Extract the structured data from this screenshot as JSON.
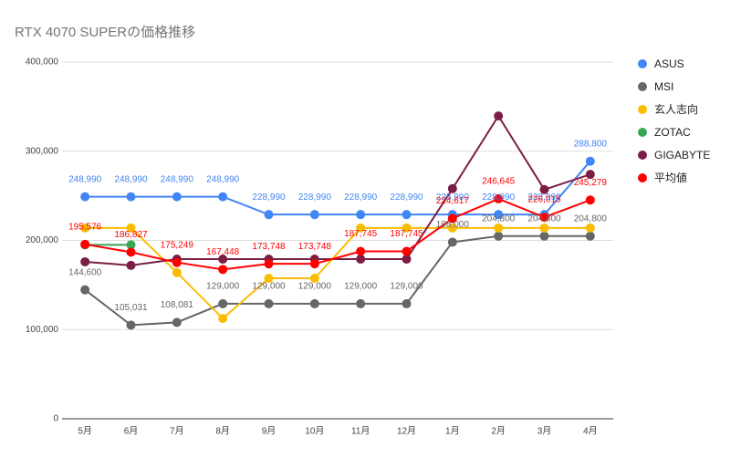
{
  "chart_data": {
    "type": "line",
    "title": "RTX 4070 SUPERの価格推移",
    "categories": [
      "5月",
      "6月",
      "7月",
      "8月",
      "9月",
      "10月",
      "11月",
      "12月",
      "1月",
      "2月",
      "3月",
      "4月"
    ],
    "ylim": [
      0,
      400000
    ],
    "yticks": [
      0,
      {
        "value": 100000,
        "label": "100,000"
      },
      {
        "value": 200000,
        "label": "200,000"
      },
      {
        "value": 300000,
        "label": "300,000"
      },
      {
        "value": 400000,
        "label": "400,000"
      }
    ],
    "grid": true,
    "legend": "right",
    "series": [
      {
        "name": "ASUS",
        "color": "#4285f4",
        "values": [
          248990,
          248990,
          248990,
          248990,
          228990,
          228990,
          228990,
          228990,
          228990,
          228990,
          228990,
          288800
        ],
        "value_labels": [
          "248,990",
          "248,990",
          "248,990",
          "248,990",
          "228,990",
          "228,990",
          "228,990",
          "228,990",
          "228,990",
          "228,990",
          "228,990",
          "288,800"
        ]
      },
      {
        "name": "MSI",
        "color": "#666666",
        "values": [
          144600,
          105031,
          108081,
          129000,
          129000,
          129000,
          129000,
          129000,
          198000,
          204800,
          204800,
          204800
        ],
        "value_labels": [
          "144,600",
          "105,031",
          "108,081",
          "129,000",
          "129,000",
          "129,000",
          "129,000",
          "129,000",
          "198,000",
          "204,800",
          "204,800",
          "204,800"
        ]
      },
      {
        "name": "玄人志向",
        "color": "#fbbc04",
        "values": [
          214000,
          214000,
          164000,
          112500,
          157500,
          157500,
          214000,
          214000,
          214000,
          214000,
          214000,
          214000
        ]
      },
      {
        "name": "ZOTAC",
        "color": "#34a853",
        "values": [
          195000,
          195000,
          null,
          null,
          null,
          null,
          null,
          null,
          null,
          null,
          null,
          null
        ]
      },
      {
        "name": "GIGABYTE",
        "color": "#7b1e45",
        "values": [
          176000,
          172000,
          179000,
          179000,
          179000,
          179000,
          179000,
          179000,
          258000,
          339500,
          257000,
          274000
        ]
      },
      {
        "name": "平均値",
        "color": "#ff0000",
        "values": [
          195576,
          186827,
          175249,
          167448,
          173748,
          173748,
          187745,
          187745,
          224617,
          246645,
          226015,
          245279
        ],
        "value_labels": [
          "195,576",
          "186,827",
          "175,249",
          "167,448",
          "173,748",
          "173,748",
          "187,745",
          "187,745",
          "224,617",
          "246,645",
          "226,015",
          "245,279"
        ]
      }
    ]
  }
}
